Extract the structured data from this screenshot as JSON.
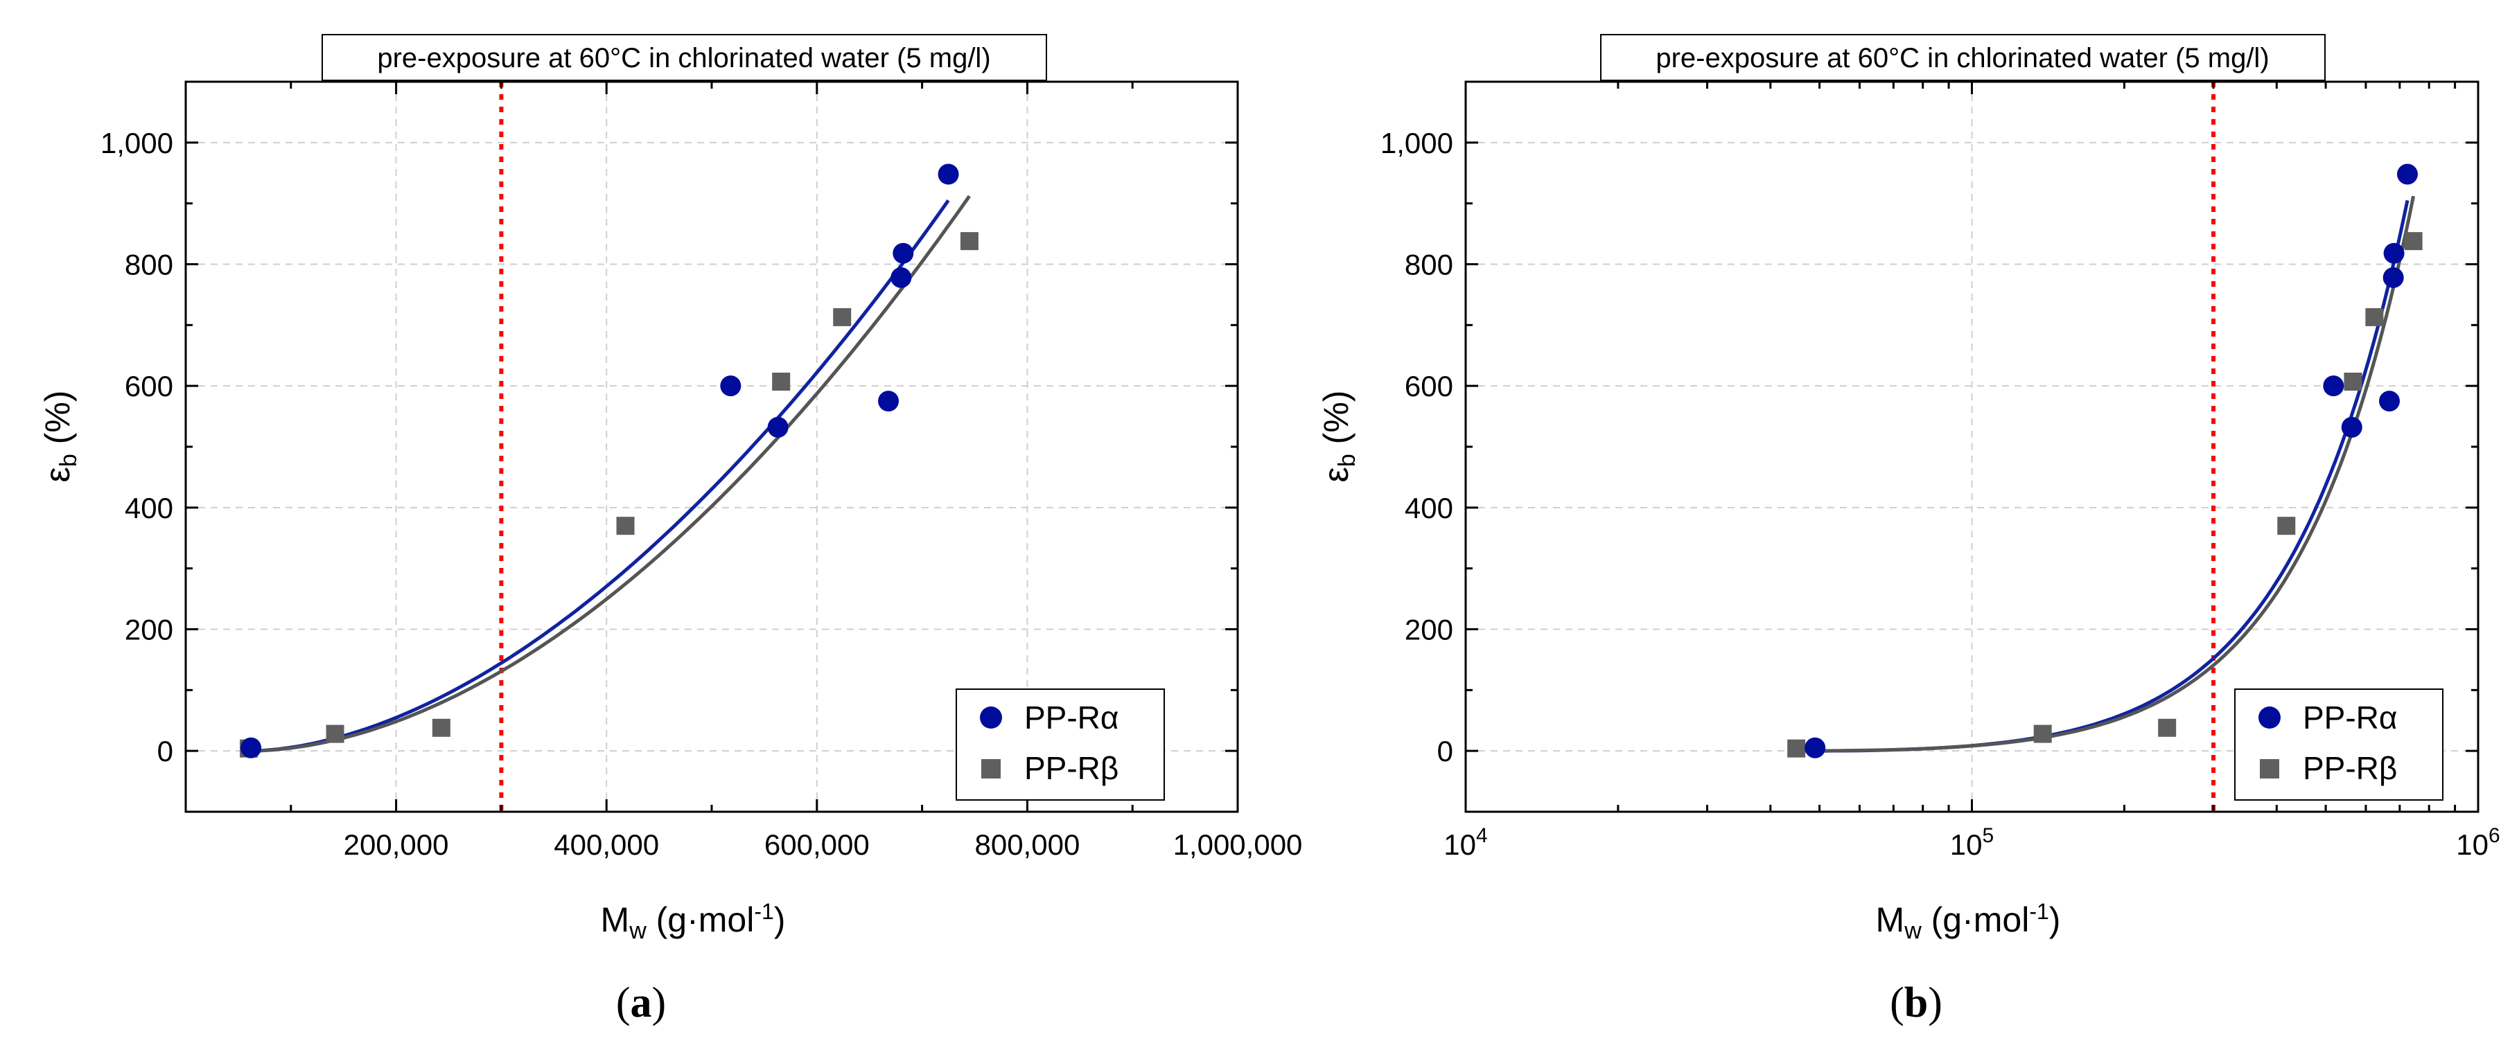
{
  "figure": {
    "caption_a": {
      "open": "(",
      "letter": "a",
      "close": ")"
    },
    "caption_b": {
      "open": "(",
      "letter": "b",
      "close": ")"
    }
  },
  "colors": {
    "alpha": "#000c9c",
    "beta": "#5f5f5f",
    "alpha_fit": "#0f23a0",
    "beta_fit": "#555555",
    "threshold": "#ff0000",
    "grid": "#cfcfcf"
  },
  "chart_data": [
    {
      "id": "a",
      "type": "scatter",
      "title": "pre-exposure at 60°C in chlorinated water (5 mg/l)",
      "xlabel": {
        "base": "M",
        "sub": "w",
        "mid": " (g·mol",
        "sup": "-1",
        "end": ")"
      },
      "ylabel": {
        "base": "ε",
        "sub": "b",
        "end": " (%)"
      },
      "xscale": "linear",
      "xlim": [
        0,
        1000000
      ],
      "ylim": [
        -100,
        1100
      ],
      "xticks": [
        200000,
        400000,
        600000,
        800000,
        1000000
      ],
      "xtick_labels": [
        "200,000",
        "400,000",
        "600,000",
        "800,000",
        "1,000,000"
      ],
      "yticks": [
        0,
        200,
        400,
        600,
        800,
        1000
      ],
      "ytick_labels": [
        "0",
        "200",
        "400",
        "600",
        "800",
        "1,000"
      ],
      "grid": true,
      "threshold_x": 300000,
      "legend_position": "bottom-right",
      "series": [
        {
          "name": "PP-Rα",
          "marker": "circle",
          "x": [
            62000,
            518000,
            563000,
            668000,
            680000,
            682000,
            725000
          ],
          "y": [
            5,
            600,
            532,
            575,
            778,
            818,
            948
          ]
        },
        {
          "name": "PP-Rβ",
          "marker": "square",
          "x": [
            60000,
            142000,
            243000,
            418000,
            566000,
            624000,
            745000
          ],
          "y": [
            4,
            28,
            38,
            370,
            607,
            713,
            838
          ]
        }
      ],
      "fits": [
        {
          "series": "PP-Rα",
          "x_start": 60000,
          "x_end": 725000,
          "y_start": 0,
          "y_end": 905,
          "power": 1.8
        },
        {
          "series": "PP-Rβ",
          "x_start": 60000,
          "x_end": 745000,
          "y_start": 0,
          "y_end": 912,
          "power": 1.85
        }
      ]
    },
    {
      "id": "b",
      "type": "scatter",
      "title": "pre-exposure at 60°C in chlorinated water (5 mg/l)",
      "xlabel": {
        "base": "M",
        "sub": "w",
        "mid": " (g·mol",
        "sup": "-1",
        "end": ")"
      },
      "ylabel": {
        "base": "ε",
        "sub": "b",
        "end": " (%)"
      },
      "xscale": "log",
      "xlim": [
        10000,
        1000000
      ],
      "ylim": [
        -100,
        1100
      ],
      "xticks": [
        10000,
        100000,
        1000000
      ],
      "xtick_labels": [
        {
          "base": "10",
          "exp": "4"
        },
        {
          "base": "10",
          "exp": "5"
        },
        {
          "base": "10",
          "exp": "6"
        }
      ],
      "yticks": [
        0,
        200,
        400,
        600,
        800,
        1000
      ],
      "ytick_labels": [
        "0",
        "200",
        "400",
        "600",
        "800",
        "1,000"
      ],
      "grid": true,
      "threshold_x": 300000,
      "legend_position": "bottom-right",
      "series": [
        {
          "name": "PP-Rα",
          "marker": "circle",
          "x": [
            49000,
            518000,
            563000,
            668000,
            680000,
            682000,
            725000
          ],
          "y": [
            5,
            600,
            532,
            575,
            778,
            818,
            948
          ]
        },
        {
          "name": "PP-Rβ",
          "marker": "square",
          "x": [
            45000,
            138000,
            243000,
            418000,
            566000,
            624000,
            745000
          ],
          "y": [
            4,
            28,
            38,
            370,
            607,
            713,
            838
          ]
        }
      ],
      "fits": [
        {
          "series": "PP-Rα",
          "x_start": 49000,
          "x_end": 725000,
          "y_start": 0,
          "y_end": 905,
          "power": 1.8
        },
        {
          "series": "PP-Rβ",
          "x_start": 45000,
          "x_end": 745000,
          "y_start": 0,
          "y_end": 912,
          "power": 1.85
        }
      ]
    }
  ]
}
